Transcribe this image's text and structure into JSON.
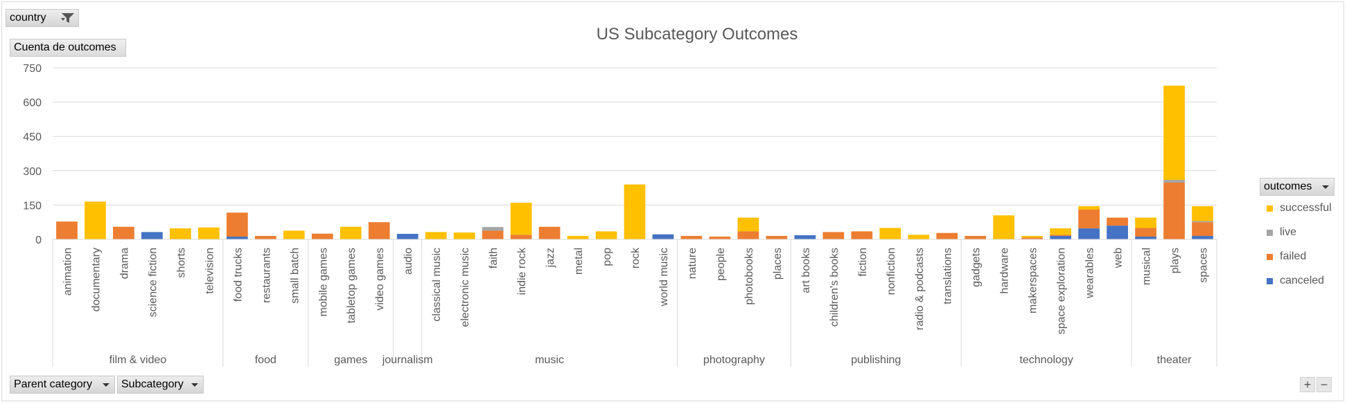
{
  "filters": {
    "country_label": "country",
    "values_label": "Cuenta de outcomes",
    "parent_category_label": "Parent category",
    "subcategory_label": "Subcategory",
    "legend_title": "outcomes"
  },
  "buttons": {
    "expand": "+",
    "collapse": "−"
  },
  "colors": {
    "successful": "#FFC000",
    "live": "#A5A5A5",
    "failed": "#ED7D31",
    "canceled": "#4472C4"
  },
  "chart_data": {
    "type": "bar",
    "stacked": true,
    "title": "US Subcategory Outcomes",
    "ylim": [
      0,
      750
    ],
    "yticks": [
      0,
      150,
      300,
      450,
      600,
      750
    ],
    "grid": true,
    "legend_position": "right",
    "series_names": [
      "successful",
      "live",
      "failed",
      "canceled"
    ],
    "groups": [
      {
        "name": "film & video",
        "items": [
          {
            "label": "animation",
            "canceled": 0,
            "failed": 78,
            "live": 0,
            "successful": 0
          },
          {
            "label": "documentary",
            "canceled": 0,
            "failed": 0,
            "live": 0,
            "successful": 165
          },
          {
            "label": "drama",
            "canceled": 0,
            "failed": 55,
            "live": 0,
            "successful": 0
          },
          {
            "label": "science fiction",
            "canceled": 32,
            "failed": 0,
            "live": 0,
            "successful": 0
          },
          {
            "label": "shorts",
            "canceled": 0,
            "failed": 0,
            "live": 0,
            "successful": 48
          },
          {
            "label": "television",
            "canceled": 0,
            "failed": 0,
            "live": 0,
            "successful": 52
          }
        ]
      },
      {
        "name": "food",
        "items": [
          {
            "label": "food trucks",
            "canceled": 12,
            "failed": 105,
            "live": 0,
            "successful": 0
          },
          {
            "label": "restaurants",
            "canceled": 0,
            "failed": 15,
            "live": 0,
            "successful": 0
          },
          {
            "label": "small batch",
            "canceled": 0,
            "failed": 0,
            "live": 0,
            "successful": 38
          }
        ]
      },
      {
        "name": "games",
        "items": [
          {
            "label": "mobile games",
            "canceled": 0,
            "failed": 25,
            "live": 0,
            "successful": 0
          },
          {
            "label": "tabletop games",
            "canceled": 0,
            "failed": 0,
            "live": 0,
            "successful": 55
          },
          {
            "label": "video games",
            "canceled": 0,
            "failed": 75,
            "live": 0,
            "successful": 0
          }
        ]
      },
      {
        "name": "journalism",
        "items": [
          {
            "label": "audio",
            "canceled": 24,
            "failed": 0,
            "live": 0,
            "successful": 0
          }
        ]
      },
      {
        "name": "music",
        "items": [
          {
            "label": "classical music",
            "canceled": 0,
            "failed": 0,
            "live": 0,
            "successful": 32
          },
          {
            "label": "electronic music",
            "canceled": 0,
            "failed": 0,
            "live": 0,
            "successful": 30
          },
          {
            "label": "faith",
            "canceled": 0,
            "failed": 38,
            "live": 16,
            "successful": 0
          },
          {
            "label": "indie rock",
            "canceled": 0,
            "failed": 20,
            "live": 0,
            "successful": 140
          },
          {
            "label": "jazz",
            "canceled": 0,
            "failed": 55,
            "live": 0,
            "successful": 0
          },
          {
            "label": "metal",
            "canceled": 0,
            "failed": 0,
            "live": 0,
            "successful": 15
          },
          {
            "label": "pop",
            "canceled": 0,
            "failed": 0,
            "live": 0,
            "successful": 35
          },
          {
            "label": "rock",
            "canceled": 0,
            "failed": 0,
            "live": 0,
            "successful": 240
          },
          {
            "label": "world music",
            "canceled": 22,
            "failed": 0,
            "live": 0,
            "successful": 0
          }
        ]
      },
      {
        "name": "photography",
        "items": [
          {
            "label": "nature",
            "canceled": 0,
            "failed": 15,
            "live": 0,
            "successful": 0
          },
          {
            "label": "people",
            "canceled": 0,
            "failed": 12,
            "live": 0,
            "successful": 0
          },
          {
            "label": "photobooks",
            "canceled": 0,
            "failed": 35,
            "live": 0,
            "successful": 60
          },
          {
            "label": "places",
            "canceled": 0,
            "failed": 15,
            "live": 0,
            "successful": 0
          }
        ]
      },
      {
        "name": "publishing",
        "items": [
          {
            "label": "art books",
            "canceled": 18,
            "failed": 0,
            "live": 0,
            "successful": 0
          },
          {
            "label": "children's books",
            "canceled": 0,
            "failed": 32,
            "live": 0,
            "successful": 0
          },
          {
            "label": "fiction",
            "canceled": 0,
            "failed": 35,
            "live": 0,
            "successful": 0
          },
          {
            "label": "nonfiction",
            "canceled": 0,
            "failed": 0,
            "live": 0,
            "successful": 50
          },
          {
            "label": "radio & podcasts",
            "canceled": 0,
            "failed": 0,
            "live": 0,
            "successful": 20
          },
          {
            "label": "translations",
            "canceled": 0,
            "failed": 28,
            "live": 0,
            "successful": 0
          }
        ]
      },
      {
        "name": "technology",
        "items": [
          {
            "label": "gadgets",
            "canceled": 0,
            "failed": 15,
            "live": 0,
            "successful": 0
          },
          {
            "label": "hardware",
            "canceled": 0,
            "failed": 0,
            "live": 0,
            "successful": 105
          },
          {
            "label": "makerspaces",
            "canceled": 0,
            "failed": 8,
            "live": 0,
            "successful": 7
          },
          {
            "label": "space exploration",
            "canceled": 15,
            "failed": 5,
            "live": 0,
            "successful": 28
          },
          {
            "label": "wearables",
            "canceled": 48,
            "failed": 82,
            "live": 0,
            "successful": 15
          },
          {
            "label": "web",
            "canceled": 60,
            "failed": 35,
            "live": 0,
            "successful": 0
          }
        ]
      },
      {
        "name": "theater",
        "items": [
          {
            "label": "musical",
            "canceled": 12,
            "failed": 38,
            "live": 0,
            "successful": 45
          },
          {
            "label": "plays",
            "canceled": 0,
            "failed": 248,
            "live": 12,
            "successful": 412
          },
          {
            "label": "spaces",
            "canceled": 15,
            "failed": 60,
            "live": 5,
            "successful": 65
          }
        ]
      }
    ]
  }
}
